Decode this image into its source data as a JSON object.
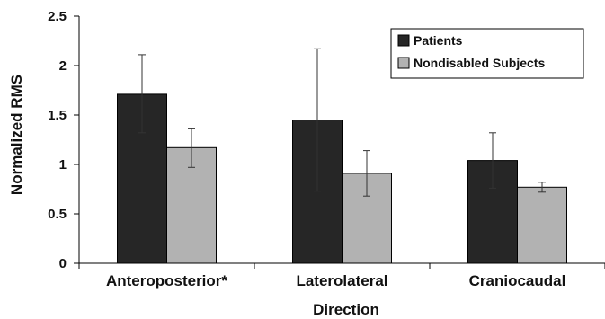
{
  "chart_data": {
    "type": "bar",
    "categories": [
      "Anteroposterior*",
      "Laterolateral",
      "Craniocaudal"
    ],
    "series": [
      {
        "name": "Patients",
        "color": "#262626",
        "values": [
          1.71,
          1.45,
          1.04
        ],
        "err_low": [
          1.32,
          0.73,
          0.76
        ],
        "err_high": [
          2.11,
          2.17,
          1.32
        ]
      },
      {
        "name": "Nondisabled Subjects",
        "color": "#b2b2b2",
        "values": [
          1.17,
          0.91,
          0.77
        ],
        "err_low": [
          0.97,
          0.68,
          0.72
        ],
        "err_high": [
          1.36,
          1.14,
          0.82
        ]
      }
    ],
    "xlabel": "Direction",
    "ylabel": "Normalized RMS",
    "ylim": [
      0,
      2.5
    ],
    "yticks": [
      "0",
      "0.5",
      "1",
      "1.5",
      "2",
      "2.5"
    ],
    "grid": false,
    "legend_position": "top-right",
    "error_bars": true
  }
}
